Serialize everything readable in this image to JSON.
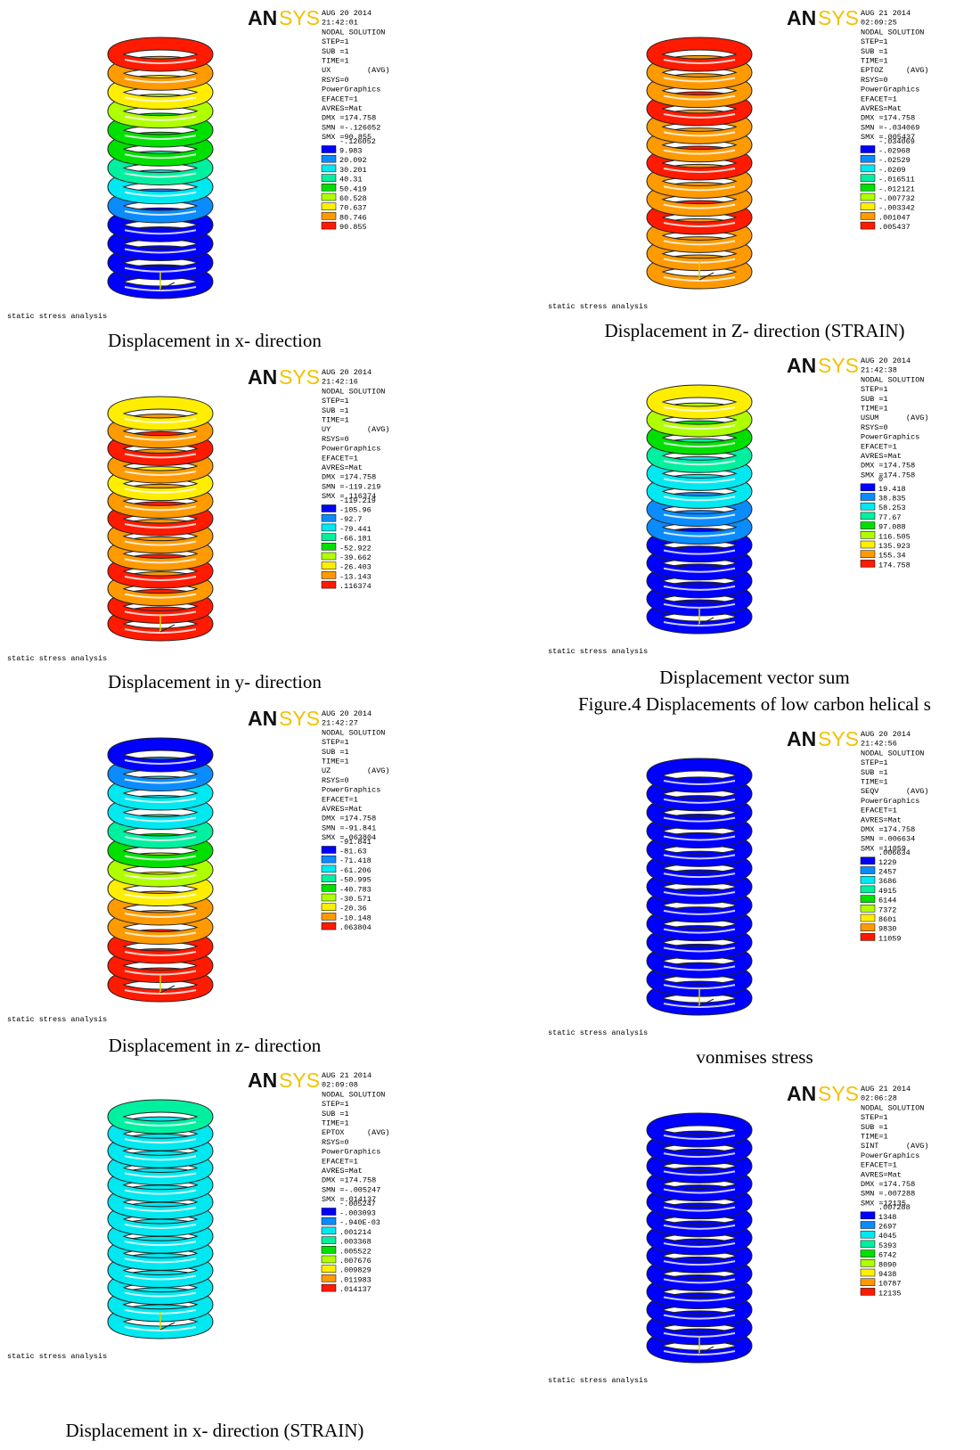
{
  "logo": {
    "left": "AN",
    "right": "SYS"
  },
  "panels": [
    {
      "info": [
        "AUG 20 2014",
        "21:42:01",
        "NODAL SOLUTION",
        "STEP=1",
        "SUB =1",
        "TIME=1",
        "UX        (AVG)",
        "RSYS=0",
        "PowerGraphics",
        "EFACET=1",
        "AVRES=Mat",
        "DMX =174.758",
        "SMN =-.126052",
        "SMX =90.855"
      ],
      "legend": [
        "-.126052",
        "9.983",
        "20.092",
        "30.201",
        "40.31",
        "50.419",
        "60.528",
        "70.637",
        "80.746",
        "90.855"
      ],
      "footer": "static stress analysis",
      "captions": [
        "Displacement in x- direction"
      ]
    },
    {
      "info": [
        "AUG 20 2014",
        "21:42:16",
        "NODAL SOLUTION",
        "STEP=1",
        "SUB =1",
        "TIME=1",
        "UY        (AVG)",
        "RSYS=0",
        "PowerGraphics",
        "EFACET=1",
        "AVRES=Mat",
        "DMX =174.758",
        "SMN =-119.219",
        "SMX =.116374"
      ],
      "legend": [
        "-119.219",
        "-105.96",
        "-92.7",
        "-79.441",
        "-66.181",
        "-52.922",
        "-39.662",
        "-26.403",
        "-13.143",
        ".116374"
      ],
      "footer": "static stress analysis",
      "captions": [
        "Displacement in y- direction"
      ]
    },
    {
      "info": [
        "AUG 20 2014",
        "21:42:27",
        "NODAL SOLUTION",
        "STEP=1",
        "SUB =1",
        "TIME=1",
        "UZ        (AVG)",
        "RSYS=0",
        "PowerGraphics",
        "EFACET=1",
        "AVRES=Mat",
        "DMX =174.758",
        "SMN =-91.841",
        "SMX =.063804"
      ],
      "legend": [
        "-91.841",
        "-81.63",
        "-71.418",
        "-61.206",
        "-50.995",
        "-40.783",
        "-30.571",
        "-20.36",
        "-10.148",
        ".063804"
      ],
      "footer": "static stress analysis",
      "captions": [
        "Displacement in z- direction"
      ]
    },
    {
      "info": [
        "AUG 21 2014",
        "02:09:08",
        "NODAL SOLUTION",
        "STEP=1",
        "SUB =1",
        "TIME=1",
        "EPTOX     (AVG)",
        "RSYS=0",
        "PowerGraphics",
        "EFACET=1",
        "AVRES=Mat",
        "DMX =174.758",
        "SMN =-.005247",
        "SMX =.014137"
      ],
      "legend": [
        "-.005247",
        "-.003093",
        "-.940E-03",
        ".001214",
        ".003368",
        ".005522",
        ".007676",
        ".009829",
        ".011983",
        ".014137"
      ],
      "footer": "static stress analysis",
      "captions": [
        "Displacement in x- direction (STRAIN)"
      ]
    },
    {
      "info": [
        "AUG 21 2014",
        "02:09:25",
        "NODAL SOLUTION",
        "STEP=1",
        "SUB =1",
        "TIME=1",
        "EPTOZ     (AVG)",
        "RSYS=0",
        "PowerGraphics",
        "EFACET=1",
        "AVRES=Mat",
        "DMX =174.758",
        "SMN =-.034069",
        "SMX =.005437"
      ],
      "legend": [
        "-.034069",
        "-.02968",
        "-.02529",
        "-.0209",
        "-.016511",
        "-.012121",
        "-.007732",
        "-.003342",
        ".001047",
        ".005437"
      ],
      "footer": "static stress analysis",
      "captions": [
        "Displacement in Z- direction (STRAIN)"
      ]
    },
    {
      "info": [
        "AUG 20 2014",
        "21:42:38",
        "NODAL SOLUTION",
        "STEP=1",
        "SUB =1",
        "TIME=1",
        "USUM      (AVG)",
        "RSYS=0",
        "PowerGraphics",
        "EFACET=1",
        "AVRES=Mat",
        "DMX =174.758",
        "SMX =174.758"
      ],
      "legend": [
        "0",
        "19.418",
        "38.835",
        "58.253",
        "77.67",
        "97.088",
        "116.505",
        "135.923",
        "155.34",
        "174.758"
      ],
      "footer": "static stress analysis",
      "captions": [
        "Displacement vector sum",
        "Figure.4 Displacements of  low carbon helical s"
      ]
    },
    {
      "info": [
        "AUG 20 2014",
        "21:42:56",
        "NODAL SOLUTION",
        "STEP=1",
        "SUB =1",
        "TIME=1",
        "SEQV      (AVG)",
        "PowerGraphics",
        "EFACET=1",
        "AVRES=Mat",
        "DMX =174.758",
        "SMN =.006634",
        "SMX =11059"
      ],
      "legend": [
        ".006634",
        "1229",
        "2457",
        "3686",
        "4915",
        "6144",
        "7372",
        "8601",
        "9830",
        "11059"
      ],
      "footer": "static stress analysis",
      "captions": [
        "vonmises stress"
      ]
    },
    {
      "info": [
        "AUG 21 2014",
        "02:06:28",
        "NODAL SOLUTION",
        "STEP=1",
        "SUB =1",
        "TIME=1",
        "SINT      (AVG)",
        "PowerGraphics",
        "EFACET=1",
        "AVRES=Mat",
        "DMX =174.758",
        "SMN =.007288",
        "SMX =12135"
      ],
      "legend": [
        ".007288",
        "1348",
        "2697",
        "4045",
        "5393",
        "6742",
        "8090",
        "9438",
        "10787",
        "12135"
      ],
      "footer": "static stress analysis",
      "captions": []
    }
  ]
}
